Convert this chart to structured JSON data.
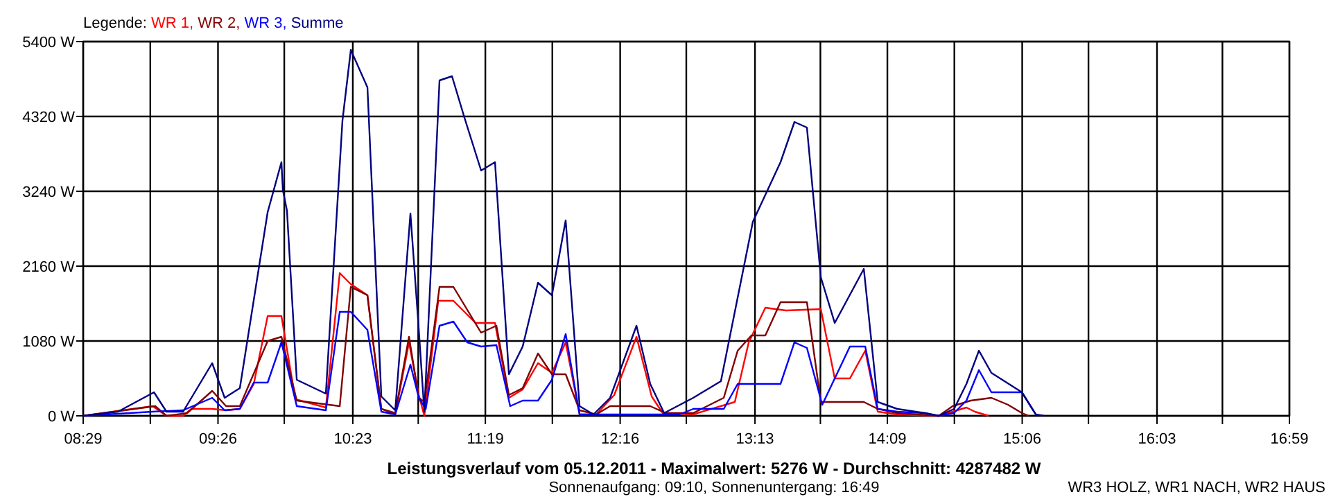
{
  "chart_data": {
    "type": "line",
    "title": "Leistungsverlauf vom 05.12.2011 - Maximalwert: 5276 W - Durchschnitt: 4287482 W",
    "subtitle": "Sonnenaufgang: 09:10, Sonnenuntergang: 16:49",
    "annotations": [
      "WR3 HOLZ, WR1 NACH, WR2 HAUS"
    ],
    "legend_title": "Legende:",
    "legend": "top left",
    "grid": true,
    "line_style": "solid",
    "marker": "none",
    "xlim": [
      8.483,
      16.983
    ],
    "xticks": [
      {
        "value": 8.483,
        "label": "08:29"
      },
      {
        "value": 8.956,
        "label": null
      },
      {
        "value": 9.433,
        "label": "09:26"
      },
      {
        "value": 9.9,
        "label": null
      },
      {
        "value": 10.383,
        "label": "10:23"
      },
      {
        "value": 10.844,
        "label": null
      },
      {
        "value": 11.317,
        "label": "11:19"
      },
      {
        "value": 11.789,
        "label": null
      },
      {
        "value": 12.267,
        "label": "12:16"
      },
      {
        "value": 12.733,
        "label": null
      },
      {
        "value": 13.217,
        "label": "13:13"
      },
      {
        "value": 13.678,
        "label": null
      },
      {
        "value": 14.15,
        "label": "14:09"
      },
      {
        "value": 14.622,
        "label": null
      },
      {
        "value": 15.1,
        "label": "15:06"
      },
      {
        "value": 15.567,
        "label": null
      },
      {
        "value": 16.05,
        "label": "16:03"
      },
      {
        "value": 16.511,
        "label": null
      },
      {
        "value": 16.983,
        "label": "16:59"
      }
    ],
    "ylim": [
      0,
      5400
    ],
    "yticks": [
      {
        "value": 0,
        "label": "0 W"
      },
      {
        "value": 1080,
        "label": "1080 W"
      },
      {
        "value": 2160,
        "label": "2160 W"
      },
      {
        "value": 3240,
        "label": "3240 W"
      },
      {
        "value": 4320,
        "label": "4320 W"
      },
      {
        "value": 5400,
        "label": "5400 W"
      }
    ],
    "series": [
      {
        "name": "WR 1,",
        "color": "#ff0000",
        "x": [
          8.483,
          8.972,
          9.07,
          9.187,
          9.245,
          9.392,
          9.49,
          9.587,
          9.685,
          9.783,
          9.88,
          9.978,
          10.193,
          10.291,
          10.369,
          10.486,
          10.584,
          10.682,
          10.779,
          10.848,
          10.887,
          10.985,
          11.092,
          11.248,
          11.385,
          11.483,
          11.58,
          11.688,
          11.786,
          11.883,
          11.981,
          12.098,
          12.225,
          12.382,
          12.489,
          12.567,
          12.782,
          12.811,
          13.075,
          13.173,
          13.29,
          13.436,
          13.681,
          13.779,
          13.886,
          13.994,
          14.082,
          14.219,
          14.512,
          14.707,
          14.766,
          14.864
        ],
        "values": [
          0,
          140,
          0,
          0,
          100,
          100,
          80,
          100,
          460,
          1440,
          1440,
          240,
          120,
          2060,
          1900,
          1740,
          100,
          20,
          1060,
          300,
          0,
          1660,
          1660,
          1340,
          1340,
          260,
          380,
          760,
          620,
          1060,
          20,
          20,
          300,
          1140,
          280,
          40,
          20,
          40,
          200,
          1060,
          1560,
          1520,
          1540,
          540,
          540,
          940,
          60,
          20,
          0,
          120,
          60,
          0
        ]
      },
      {
        "name": "WR 2,",
        "color": "#800000",
        "x": [
          8.483,
          8.991,
          9.07,
          9.216,
          9.392,
          9.49,
          9.587,
          9.783,
          9.88,
          9.988,
          10.291,
          10.369,
          10.486,
          10.584,
          10.682,
          10.779,
          10.848,
          10.887,
          10.994,
          11.092,
          11.287,
          11.395,
          11.483,
          11.58,
          11.688,
          11.786,
          11.883,
          11.981,
          12.098,
          12.196,
          12.479,
          12.587,
          12.782,
          12.997,
          13.095,
          13.192,
          13.29,
          13.397,
          13.583,
          13.681,
          13.984,
          14.082,
          14.219,
          14.512,
          14.61,
          14.737,
          14.883,
          15.0,
          15.098,
          15.147
        ],
        "values": [
          0,
          140,
          0,
          40,
          360,
          140,
          140,
          1080,
          1140,
          220,
          140,
          1860,
          1740,
          100,
          40,
          1140,
          260,
          200,
          1860,
          1860,
          1200,
          1300,
          300,
          400,
          900,
          600,
          600,
          80,
          20,
          140,
          140,
          40,
          40,
          260,
          940,
          1160,
          1160,
          1640,
          1640,
          200,
          200,
          100,
          40,
          0,
          140,
          220,
          260,
          160,
          40,
          0
        ]
      },
      {
        "name": "WR 3,",
        "color": "#0000ff",
        "x": [
          8.483,
          8.972,
          9.187,
          9.392,
          9.48,
          9.587,
          9.685,
          9.783,
          9.88,
          9.988,
          10.193,
          10.291,
          10.369,
          10.486,
          10.584,
          10.682,
          10.789,
          10.848,
          10.897,
          10.994,
          11.092,
          11.19,
          11.287,
          11.395,
          11.492,
          11.58,
          11.688,
          11.786,
          11.883,
          11.981,
          12.684,
          12.782,
          12.997,
          13.095,
          13.397,
          13.495,
          13.583,
          13.691,
          13.886,
          13.994,
          14.082,
          14.219,
          14.414,
          14.512,
          14.62,
          14.707,
          14.795,
          14.883,
          15.098,
          15.196
        ],
        "values": [
          0,
          60,
          80,
          260,
          80,
          100,
          480,
          480,
          1060,
          140,
          80,
          1500,
          1500,
          1240,
          60,
          20,
          740,
          260,
          100,
          1300,
          1360,
          1060,
          1000,
          1020,
          140,
          220,
          220,
          520,
          1180,
          20,
          20,
          100,
          100,
          460,
          460,
          1060,
          980,
          160,
          1000,
          1000,
          100,
          60,
          40,
          0,
          40,
          220,
          660,
          340,
          340,
          20
        ]
      },
      {
        "name": "Summe",
        "color": "#000080",
        "x": [
          8.483,
          8.728,
          8.982,
          9.07,
          9.187,
          9.392,
          9.48,
          9.587,
          9.783,
          9.88,
          9.89,
          9.919,
          9.988,
          10.193,
          10.31,
          10.369,
          10.486,
          10.584,
          10.682,
          10.789,
          10.848,
          10.887,
          10.994,
          11.082,
          11.17,
          11.287,
          11.385,
          11.483,
          11.58,
          11.688,
          11.786,
          11.883,
          11.981,
          12.079,
          12.196,
          12.382,
          12.479,
          12.577,
          12.782,
          12.977,
          13.202,
          13.397,
          13.495,
          13.583,
          13.681,
          13.779,
          13.984,
          14.082,
          14.219,
          14.414,
          14.512,
          14.62,
          14.707,
          14.795,
          14.883,
          15.098,
          15.196,
          15.254
        ],
        "values": [
          0,
          60,
          340,
          60,
          60,
          760,
          260,
          400,
          2940,
          3660,
          3260,
          2960,
          520,
          320,
          4260,
          5280,
          4740,
          280,
          80,
          2920,
          1240,
          60,
          4840,
          4900,
          4300,
          3540,
          3660,
          600,
          1000,
          1920,
          1740,
          2820,
          140,
          20,
          260,
          1300,
          460,
          40,
          260,
          500,
          2800,
          3660,
          4240,
          4160,
          2000,
          1340,
          2120,
          200,
          100,
          40,
          0,
          100,
          460,
          940,
          620,
          340,
          20,
          0
        ]
      }
    ]
  }
}
